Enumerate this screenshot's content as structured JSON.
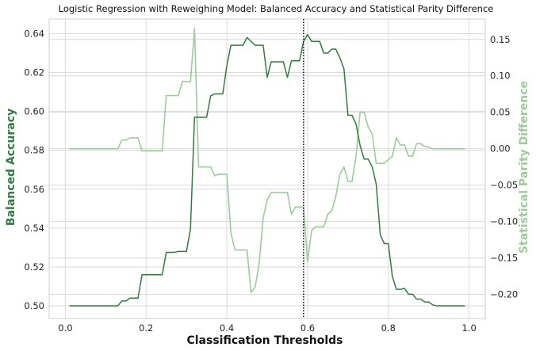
{
  "chart_data": {
    "type": "line",
    "title": "Logistic Regression with Reweighing Model: Balanced Accuracy and Statistical Parity Difference",
    "xlabel": "Classification Thresholds",
    "ylabel_left": "Balanced Accuracy",
    "ylabel_right": "Statistical Parity Difference",
    "xlim": [
      -0.04,
      1.04
    ],
    "ylim_left": [
      0.4935,
      0.6475
    ],
    "ylim_right": [
      -0.233,
      0.178
    ],
    "x_ticks": [
      "0.0",
      "0.2",
      "0.4",
      "0.6",
      "0.8",
      "1.0"
    ],
    "y_left_ticks": [
      "0.50",
      "0.52",
      "0.54",
      "0.56",
      "0.58",
      "0.60",
      "0.62",
      "0.64"
    ],
    "y_right_ticks": [
      "−0.20",
      "−0.15",
      "−0.10",
      "−0.05",
      "0.00",
      "0.05",
      "0.10",
      "0.15"
    ],
    "x_tick_values": [
      0.0,
      0.2,
      0.4,
      0.6,
      0.8,
      1.0
    ],
    "y_left_tick_values": [
      0.5,
      0.52,
      0.54,
      0.56,
      0.58,
      0.6,
      0.62,
      0.64
    ],
    "y_right_tick_values": [
      -0.2,
      -0.15,
      -0.1,
      -0.05,
      0.0,
      0.05,
      0.1,
      0.15
    ],
    "grid": true,
    "vline": 0.59,
    "colors": {
      "left": "#2e7d3f",
      "right": "#9ccc9a",
      "vline": "#111111"
    },
    "x": [
      0.01,
      0.02,
      0.03,
      0.04,
      0.05,
      0.06,
      0.07,
      0.08,
      0.09,
      0.1,
      0.11,
      0.12,
      0.13,
      0.14,
      0.15,
      0.16,
      0.17,
      0.18,
      0.19,
      0.2,
      0.21,
      0.22,
      0.23,
      0.24,
      0.25,
      0.26,
      0.27,
      0.28,
      0.29,
      0.3,
      0.31,
      0.32,
      0.33,
      0.34,
      0.35,
      0.36,
      0.37,
      0.38,
      0.39,
      0.4,
      0.41,
      0.42,
      0.43,
      0.44,
      0.45,
      0.46,
      0.47,
      0.48,
      0.49,
      0.5,
      0.51,
      0.52,
      0.53,
      0.54,
      0.55,
      0.56,
      0.57,
      0.58,
      0.59,
      0.6,
      0.61,
      0.62,
      0.63,
      0.64,
      0.65,
      0.66,
      0.67,
      0.68,
      0.69,
      0.7,
      0.71,
      0.72,
      0.73,
      0.74,
      0.75,
      0.76,
      0.77,
      0.78,
      0.79,
      0.8,
      0.81,
      0.82,
      0.83,
      0.84,
      0.85,
      0.86,
      0.87,
      0.88,
      0.89,
      0.9,
      0.91,
      0.92,
      0.93,
      0.94,
      0.95,
      0.96,
      0.97,
      0.98,
      0.99
    ],
    "series": [
      {
        "axis": "left",
        "values": [
          0.5,
          0.5,
          0.5,
          0.5,
          0.5,
          0.5,
          0.5,
          0.5,
          0.5,
          0.5,
          0.5,
          0.5,
          0.5,
          0.5025,
          0.5025,
          0.504,
          0.504,
          0.504,
          0.516,
          0.516,
          0.516,
          0.516,
          0.516,
          0.516,
          0.5275,
          0.5275,
          0.5275,
          0.528,
          0.528,
          0.528,
          0.5395,
          0.597,
          0.597,
          0.597,
          0.597,
          0.608,
          0.609,
          0.609,
          0.609,
          0.6235,
          0.634,
          0.634,
          0.634,
          0.634,
          0.638,
          0.636,
          0.634,
          0.634,
          0.634,
          0.6175,
          0.6255,
          0.6255,
          0.6255,
          0.6255,
          0.6175,
          0.626,
          0.626,
          0.626,
          0.636,
          0.6395,
          0.636,
          0.636,
          0.636,
          0.63,
          0.63,
          0.632,
          0.632,
          0.6275,
          0.622,
          0.598,
          0.598,
          0.5935,
          0.5825,
          0.5755,
          0.5755,
          0.5715,
          0.5625,
          0.5365,
          0.532,
          0.532,
          0.515,
          0.5085,
          0.5085,
          0.509,
          0.506,
          0.506,
          0.5035,
          0.5035,
          0.502,
          0.502,
          0.5005,
          0.5,
          0.5,
          0.5,
          0.5,
          0.5,
          0.5,
          0.5,
          0.5
        ]
      },
      {
        "axis": "right",
        "values": [
          0.0,
          0.0,
          0.0,
          0.0,
          0.0,
          0.0,
          0.0,
          0.0,
          0.0,
          0.0,
          0.0,
          0.0,
          0.0,
          0.012,
          0.012,
          0.015,
          0.015,
          0.015,
          -0.003,
          -0.003,
          -0.003,
          -0.003,
          -0.003,
          -0.003,
          0.073,
          0.073,
          0.073,
          0.073,
          0.092,
          0.092,
          0.092,
          0.165,
          -0.025,
          -0.025,
          -0.025,
          -0.025,
          -0.037,
          -0.035,
          -0.035,
          -0.035,
          -0.115,
          -0.139,
          -0.139,
          -0.139,
          -0.139,
          -0.197,
          -0.19,
          -0.158,
          -0.095,
          -0.07,
          -0.06,
          -0.06,
          -0.06,
          -0.06,
          -0.06,
          -0.09,
          -0.08,
          -0.08,
          -0.08,
          -0.155,
          -0.112,
          -0.107,
          -0.107,
          -0.107,
          -0.09,
          -0.085,
          -0.065,
          -0.035,
          -0.025,
          -0.045,
          -0.045,
          -0.01,
          0.05,
          0.05,
          0.03,
          0.02,
          -0.02,
          -0.02,
          -0.02,
          -0.015,
          -0.01,
          0.015,
          0.005,
          0.005,
          -0.01,
          -0.01,
          0.007,
          0.007,
          0.003,
          0.002,
          0.0,
          0.0,
          0.0,
          0.0,
          0.0,
          0.0,
          0.0,
          0.0,
          0.0
        ]
      }
    ]
  }
}
